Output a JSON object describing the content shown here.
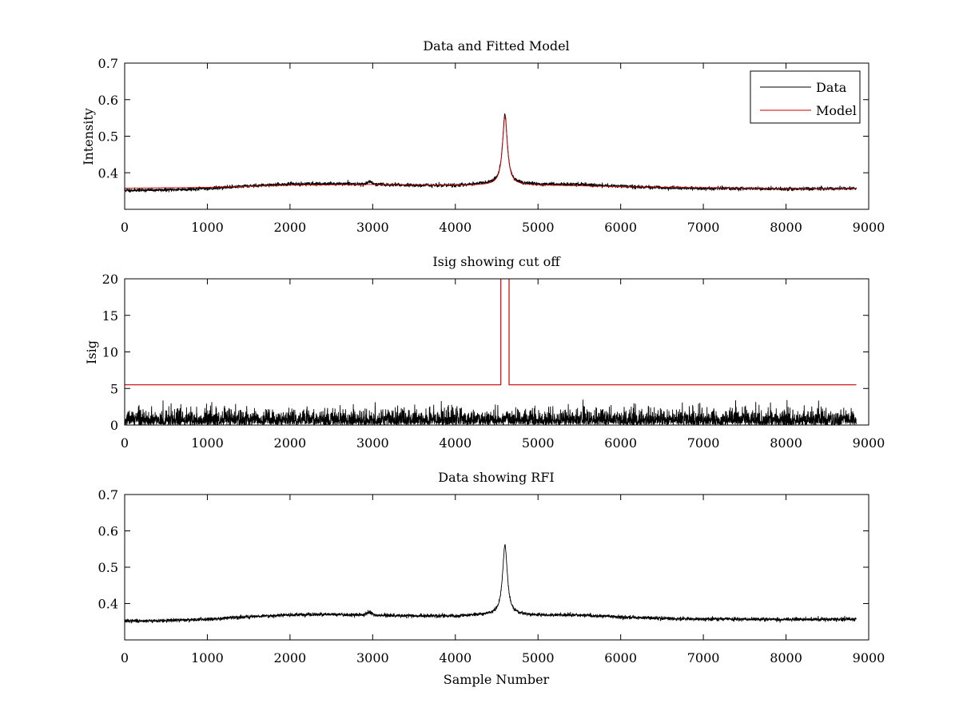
{
  "figure": {
    "background": "#ffffff",
    "line_colors": {
      "data": "#000000",
      "model": "#cc0000"
    }
  },
  "chart_data": [
    {
      "type": "line",
      "title": "Data and Fitted Model",
      "xlabel": "",
      "ylabel": "Intensity",
      "xlim": [
        0,
        9000
      ],
      "ylim": [
        0.3,
        0.7
      ],
      "xticks": [
        0,
        1000,
        2000,
        3000,
        4000,
        5000,
        6000,
        7000,
        8000,
        9000
      ],
      "yticks": [
        0.4,
        0.5,
        0.6,
        0.7
      ],
      "grid": false,
      "legend": {
        "position": "top-right",
        "entries": [
          "Data",
          "Model"
        ]
      },
      "series": [
        {
          "name": "Data",
          "color": "#000000",
          "n_samples": 8850,
          "noise_amplitude": 0.004,
          "baseline_points": [
            [
              0,
              0.352
            ],
            [
              500,
              0.353
            ],
            [
              1000,
              0.357
            ],
            [
              1500,
              0.364
            ],
            [
              2000,
              0.369
            ],
            [
              2500,
              0.37
            ],
            [
              3000,
              0.368
            ],
            [
              3500,
              0.366
            ],
            [
              4000,
              0.365
            ],
            [
              4300,
              0.369
            ],
            [
              5000,
              0.368
            ],
            [
              5500,
              0.368
            ],
            [
              6000,
              0.363
            ],
            [
              6500,
              0.359
            ],
            [
              7000,
              0.357
            ],
            [
              7500,
              0.357
            ],
            [
              8000,
              0.356
            ],
            [
              8850,
              0.357
            ]
          ],
          "features": [
            {
              "kind": "peak",
              "center": 4600,
              "amplitude": 0.192,
              "half_width": 35
            },
            {
              "kind": "bump",
              "center": 2960,
              "amplitude": 0.008,
              "half_width": 40
            }
          ]
        },
        {
          "name": "Model",
          "color": "#cc0000",
          "baseline_points": [
            [
              0,
              0.358
            ],
            [
              1000,
              0.36
            ],
            [
              2000,
              0.366
            ],
            [
              3000,
              0.368
            ],
            [
              4000,
              0.366
            ],
            [
              5000,
              0.366
            ],
            [
              6000,
              0.362
            ],
            [
              7000,
              0.359
            ],
            [
              8000,
              0.357
            ],
            [
              8850,
              0.357
            ]
          ],
          "features": [
            {
              "kind": "peak",
              "center": 4600,
              "amplitude": 0.19,
              "half_width": 35
            }
          ]
        }
      ]
    },
    {
      "type": "line",
      "title": "Isig showing cut off",
      "xlabel": "",
      "ylabel": "Isig",
      "xlim": [
        0,
        9000
      ],
      "ylim": [
        0,
        20
      ],
      "xticks": [
        0,
        1000,
        2000,
        3000,
        4000,
        5000,
        6000,
        7000,
        8000,
        9000
      ],
      "yticks": [
        0,
        5,
        10,
        15,
        20
      ],
      "grid": false,
      "series": [
        {
          "color": "#000000",
          "n_samples": 8850,
          "noise_amplitude": 1.8,
          "noise_max": 3.5
        },
        {
          "color": "#cc0000",
          "cutoff_level": 5.5,
          "cutoff_gap": [
            4550,
            4650
          ],
          "x_range": [
            0,
            8850
          ]
        }
      ]
    },
    {
      "type": "line",
      "title": "Data showing RFI",
      "xlabel": "Sample Number",
      "ylabel": "",
      "xlim": [
        0,
        9000
      ],
      "ylim": [
        0.3,
        0.7
      ],
      "xticks": [
        0,
        1000,
        2000,
        3000,
        4000,
        5000,
        6000,
        7000,
        8000,
        9000
      ],
      "yticks": [
        0.4,
        0.5,
        0.6,
        0.7
      ],
      "grid": false,
      "series": [
        {
          "color": "#000000",
          "n_samples": 8850,
          "noise_amplitude": 0.004,
          "baseline_points": [
            [
              0,
              0.352
            ],
            [
              500,
              0.353
            ],
            [
              1000,
              0.357
            ],
            [
              1500,
              0.364
            ],
            [
              2000,
              0.369
            ],
            [
              2500,
              0.37
            ],
            [
              3000,
              0.368
            ],
            [
              3500,
              0.366
            ],
            [
              4000,
              0.365
            ],
            [
              4300,
              0.369
            ],
            [
              5000,
              0.368
            ],
            [
              5500,
              0.368
            ],
            [
              6000,
              0.363
            ],
            [
              6500,
              0.359
            ],
            [
              7000,
              0.357
            ],
            [
              7500,
              0.357
            ],
            [
              8000,
              0.356
            ],
            [
              8850,
              0.357
            ]
          ],
          "features": [
            {
              "kind": "peak",
              "center": 4600,
              "amplitude": 0.192,
              "half_width": 35
            },
            {
              "kind": "bump",
              "center": 2960,
              "amplitude": 0.008,
              "half_width": 40
            }
          ]
        }
      ]
    }
  ]
}
